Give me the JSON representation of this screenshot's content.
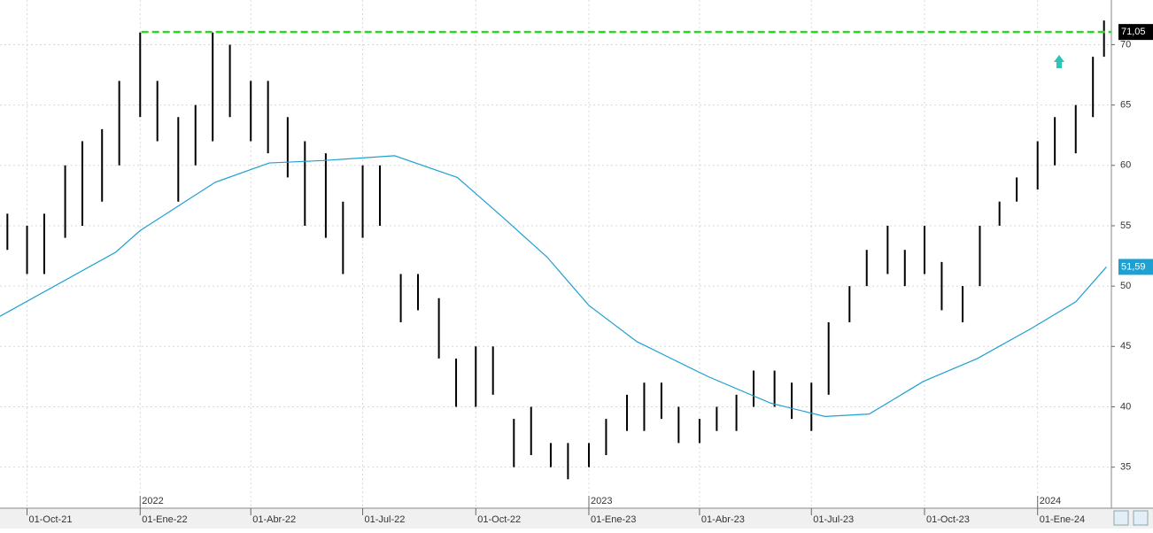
{
  "chart_data": {
    "type": "ohlc",
    "xlim": [
      "2021-09-09",
      "2024-03-01"
    ],
    "ylim": [
      31.6,
      73.7
    ],
    "yticks": [
      35,
      40,
      45,
      50,
      55,
      60,
      65,
      70
    ],
    "grid": true,
    "xticks": [
      {
        "value": "2021-10-01",
        "label": "01-Oct-21"
      },
      {
        "value": "2022-01-01",
        "label": "01-Ene-22"
      },
      {
        "value": "2022-04-01",
        "label": "01-Abr-22"
      },
      {
        "value": "2022-07-01",
        "label": "01-Jul-22"
      },
      {
        "value": "2022-10-01",
        "label": "01-Oct-22"
      },
      {
        "value": "2023-01-01",
        "label": "01-Ene-23"
      },
      {
        "value": "2023-04-01",
        "label": "01-Abr-23"
      },
      {
        "value": "2023-07-01",
        "label": "01-Jul-23"
      },
      {
        "value": "2023-10-01",
        "label": "01-Oct-23"
      },
      {
        "value": "2024-01-01",
        "label": "01-Ene-24"
      }
    ],
    "year_ticks": [
      {
        "value": "2022-01-01",
        "label": "2022"
      },
      {
        "value": "2023-01-01",
        "label": "2023"
      },
      {
        "value": "2024-01-01",
        "label": "2024"
      }
    ],
    "bars": {
      "color": "#000000",
      "x": [
        "2021-09-15",
        "2021-10-01",
        "2021-10-15",
        "2021-11-01",
        "2021-11-15",
        "2021-12-01",
        "2021-12-15",
        "2022-01-01",
        "2022-01-15",
        "2022-02-01",
        "2022-02-15",
        "2022-03-01",
        "2022-03-15",
        "2022-04-01",
        "2022-04-15",
        "2022-05-01",
        "2022-05-15",
        "2022-06-01",
        "2022-06-15",
        "2022-07-01",
        "2022-07-15",
        "2022-08-01",
        "2022-08-15",
        "2022-09-01",
        "2022-09-15",
        "2022-10-01",
        "2022-10-15",
        "2022-11-01",
        "2022-11-15",
        "2022-12-01",
        "2022-12-15",
        "2023-01-01",
        "2023-01-15",
        "2023-02-01",
        "2023-02-15",
        "2023-03-01",
        "2023-03-15",
        "2023-04-01",
        "2023-04-15",
        "2023-05-01",
        "2023-05-15",
        "2023-06-01",
        "2023-06-15",
        "2023-07-01",
        "2023-07-15",
        "2023-08-01",
        "2023-08-15",
        "2023-09-01",
        "2023-09-15",
        "2023-10-01",
        "2023-10-15",
        "2023-11-01",
        "2023-11-15",
        "2023-12-01",
        "2023-12-15",
        "2024-01-01",
        "2024-01-15",
        "2024-02-01",
        "2024-02-15",
        "2024-02-24"
      ],
      "high": [
        56,
        55,
        56,
        60,
        62,
        63,
        67,
        71,
        67,
        64,
        65,
        71,
        70,
        67,
        67,
        64,
        62,
        61,
        57,
        60,
        60,
        51,
        51,
        49,
        44,
        45,
        45,
        39,
        40,
        37,
        37,
        37,
        39,
        41,
        42,
        42,
        40,
        39,
        40,
        41,
        43,
        43,
        42,
        42,
        47,
        50,
        53,
        55,
        53,
        55,
        52,
        50,
        55,
        57,
        59,
        62,
        64,
        65,
        69,
        72
      ],
      "low": [
        53,
        51,
        51,
        54,
        55,
        57,
        60,
        64,
        62,
        57,
        60,
        62,
        64,
        62,
        61,
        59,
        55,
        54,
        51,
        54,
        55,
        47,
        48,
        44,
        40,
        40,
        41,
        35,
        36,
        35,
        34,
        35,
        36,
        38,
        38,
        39,
        37,
        37,
        38,
        38,
        40,
        40,
        39,
        38,
        41,
        47,
        50,
        51,
        50,
        51,
        48,
        47,
        50,
        55,
        57,
        58,
        60,
        61,
        64,
        69
      ]
    },
    "moving_average": {
      "color": "#1ea0d2",
      "x": [
        "2021-09-09",
        "2021-12-12",
        "2022-01-01",
        "2022-03-03",
        "2022-04-16",
        "2022-05-30",
        "2022-07-27",
        "2022-09-16",
        "2022-10-23",
        "2022-11-28",
        "2023-01-01",
        "2023-02-09",
        "2023-04-08",
        "2023-05-29",
        "2023-07-12",
        "2023-08-17",
        "2023-09-30",
        "2023-11-13",
        "2023-12-27",
        "2024-02-01",
        "2024-02-26"
      ],
      "values": [
        47.5,
        52.8,
        54.6,
        58.6,
        60.2,
        60.4,
        60.8,
        59.0,
        55.7,
        52.4,
        48.4,
        45.4,
        42.5,
        40.3,
        39.2,
        39.4,
        42.1,
        44.0,
        46.5,
        48.7,
        51.59
      ],
      "value_labels": [
        null,
        null,
        null,
        null,
        null,
        null,
        null,
        null,
        null,
        null,
        null,
        null,
        null,
        null,
        null,
        null,
        null,
        null,
        null,
        null,
        "51,59"
      ]
    },
    "resistance": {
      "value": 71.05,
      "label": "71,05",
      "color": "#22dd22"
    }
  }
}
